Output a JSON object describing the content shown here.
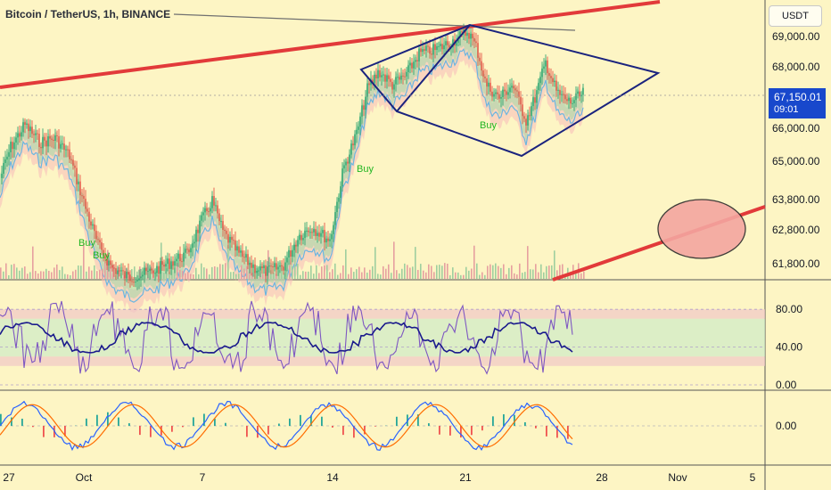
{
  "header": {
    "title": "Bitcoin / TetherUS, 1h, BINANCE",
    "currency_button": "USDT"
  },
  "price_tag": {
    "price": "67,150.01",
    "countdown": "09:01"
  },
  "colors": {
    "background": "#fdf5c4",
    "trendline": "#e23a3a",
    "wedge": "#1a237e",
    "rsi_line": "#7e57c2",
    "rsi_signal": "#1a1a8c",
    "price_tag": "#1848cc"
  },
  "chart_data": [
    {
      "type": "line",
      "name": "price",
      "x_ticks": [
        "27",
        "Oct",
        "7",
        "14",
        "21",
        "28",
        "Nov",
        "5"
      ],
      "y_ticks": [
        "69,000.00",
        "68,000.00",
        "66,000.00",
        "65,000.00",
        "63,800.00",
        "62,800.00",
        "61,800.00"
      ],
      "ylim": [
        61200,
        69800
      ],
      "annotations": [
        "Buy",
        "Buy",
        "Buy",
        "Buy"
      ],
      "close": 67150.01
    },
    {
      "type": "line",
      "name": "stochastic-rsi",
      "y_ticks": [
        "80.00",
        "40.00",
        "0.00"
      ],
      "ylim": [
        0,
        100
      ],
      "bands": [
        [
          70,
          80
        ],
        [
          30,
          70
        ],
        [
          20,
          30
        ]
      ]
    },
    {
      "type": "bar",
      "name": "macd",
      "y_ticks": [
        "0.00"
      ]
    }
  ]
}
